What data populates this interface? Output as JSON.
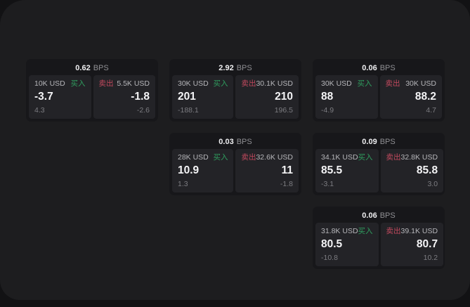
{
  "labels": {
    "bps_unit": "BPS",
    "buy": "买入",
    "sell": "卖出"
  },
  "colors": {
    "buy_green": "#2f9e5f",
    "sell_red": "#c2495e",
    "frame_bg": "#1d1d1f",
    "card_bg": "#17171a",
    "tile_bg": "#232327"
  },
  "cards": [
    {
      "bps": "0.62",
      "buy": {
        "amount": "10K USD",
        "price": "-3.7",
        "change": "4.3"
      },
      "sell": {
        "amount": "5.5K USD",
        "price": "-1.8",
        "change": "-2.6"
      }
    },
    {
      "bps": "2.92",
      "buy": {
        "amount": "30K USD",
        "price": "201",
        "change": "-188.1"
      },
      "sell": {
        "amount": "30.1K USD",
        "price": "210",
        "change": "196.5"
      }
    },
    {
      "bps": "0.06",
      "buy": {
        "amount": "30K USD",
        "price": "88",
        "change": "-4.9"
      },
      "sell": {
        "amount": "30K USD",
        "price": "88.2",
        "change": "4.7"
      }
    },
    {
      "bps": "0.03",
      "buy": {
        "amount": "28K USD",
        "price": "10.9",
        "change": "1.3"
      },
      "sell": {
        "amount": "32.6K USD",
        "price": "11",
        "change": "-1.8"
      }
    },
    {
      "bps": "0.09",
      "buy": {
        "amount": "34.1K USD",
        "price": "85.5",
        "change": "-3.1"
      },
      "sell": {
        "amount": "32.8K USD",
        "price": "85.8",
        "change": "3.0"
      }
    },
    {
      "bps": "0.06",
      "buy": {
        "amount": "31.8K USD",
        "price": "80.5",
        "change": "-10.8"
      },
      "sell": {
        "amount": "39.1K USD",
        "price": "80.7",
        "change": "10.2"
      }
    }
  ]
}
